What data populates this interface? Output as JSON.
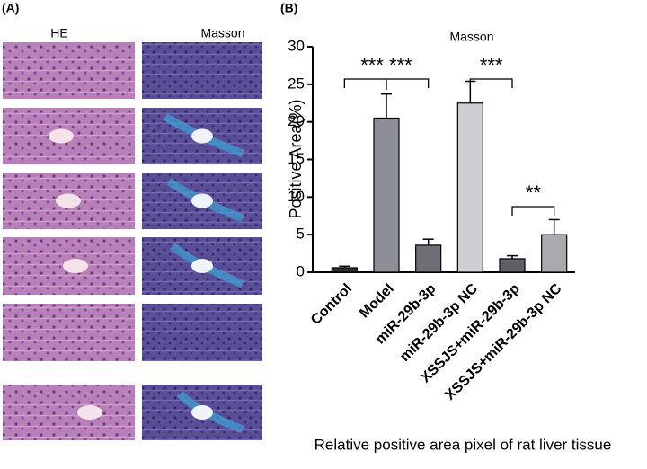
{
  "figure": {
    "panel_a_label": "(A)",
    "panel_b_label": "(B)",
    "columns": [
      "HE",
      "Masson"
    ],
    "caption": "Relative positive area pixel of rat liver tissue"
  },
  "chart_data": {
    "type": "bar",
    "title": "Masson",
    "y_label": "Positive Area(%)",
    "categories": [
      "Control",
      "Model",
      "miR-29b-3p",
      "miR-29b-3p NC",
      "XSSJS+miR-29b-3p",
      "XSSJS+miR-29b-3p NC"
    ],
    "values": [
      0.6,
      20.5,
      3.6,
      22.5,
      1.8,
      5.0
    ],
    "errors": [
      0.2,
      3.2,
      0.8,
      2.9,
      0.4,
      2.0
    ],
    "colors": [
      "#2e2e2e",
      "#8e8e96",
      "#6e6e74",
      "#cfcfd2",
      "#5e5e64",
      "#a9a9ae"
    ],
    "ylim": [
      0,
      30
    ],
    "yticks": [
      0,
      5,
      10,
      15,
      20,
      25,
      30
    ],
    "annotations": [
      {
        "text": "*** ***"
      },
      {
        "text": "***"
      },
      {
        "text": "**"
      }
    ]
  }
}
